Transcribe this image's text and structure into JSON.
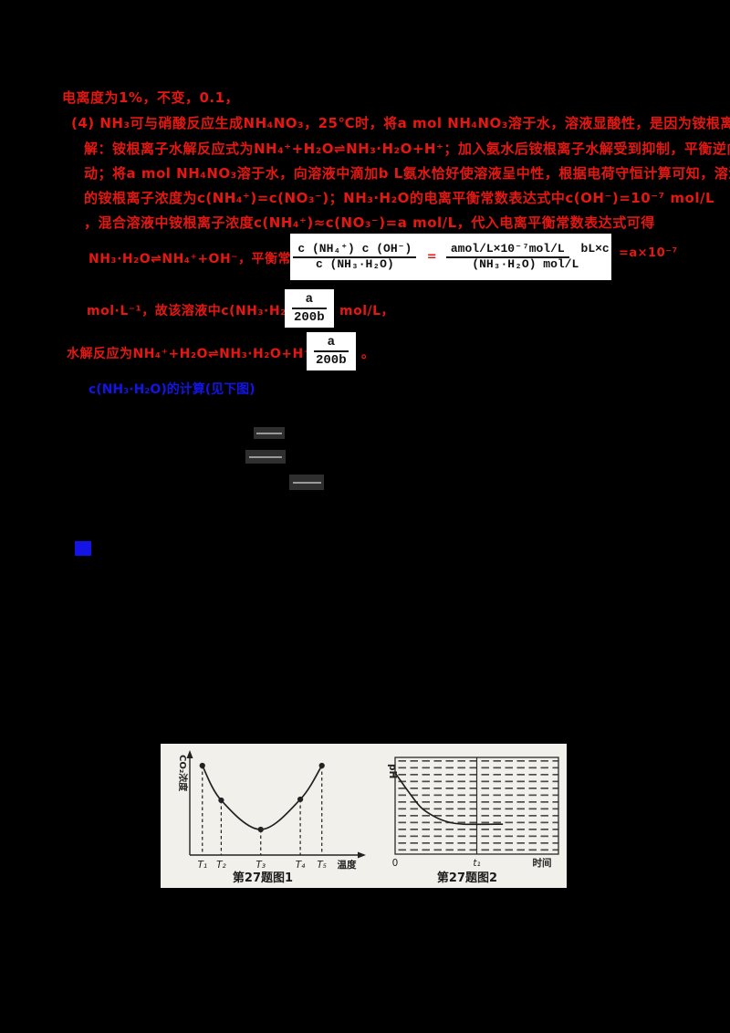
{
  "colors": {
    "red": "#e41712",
    "blue": "#1414e6",
    "paper": "#f2f0ea",
    "ink": "#1c1c1c",
    "background": "#000000"
  },
  "answer_text": {
    "line0": "电离度为1%，不变，0.1，",
    "line1": "(4) NH₃可与硝酸反应生成NH₄NO₃，25℃时，将a mol NH₄NO₃溶于水，溶液显酸性，是因为铵根离子水",
    "line2": "解：铵根离子水解反应式为NH₄⁺+H₂O⇌NH₃·H₂O+H⁺；加入氨水后铵根离子水解受到抑制，平衡逆向移",
    "line3": "动；将a mol NH₄NO₃溶于水，向溶液中滴加b L氨水恰好使溶液呈中性，根据电荷守恒计算可知，溶液中",
    "line4": "的铵根离子浓度为c(NH₄⁺)=c(NO₃⁻)；NH₃·H₂O的电离平衡常数表达式中c(OH⁻)=10⁻⁷ mol/L",
    "line5": "，混合溶液中铵根离子浓度c(NH₄⁺)≈c(NO₃⁻)=a mol/L，代入电离平衡常数表达式可得",
    "formula_prefix": "NH₃·H₂O⇌NH₄⁺+OH⁻，平衡常数K=",
    "formula_suffix": "=a×10⁻⁷",
    "line6_pre": "mol·L⁻¹，故该溶液中c(NH₃·H₂O)=",
    "line6_post": "mol/L，",
    "line7_pre": "水解反应为NH₄⁺+H₂O⇌NH₃·H₂O+H⁺，故为：",
    "line7_post": "。",
    "blue_note": "c(NH₃·H₂O)的计算(见下图)"
  },
  "formula_box": {
    "frac1_num": "c (NH₄⁺) c (OH⁻)",
    "frac1_den": "c (NH₃·H₂O)",
    "equals": "=",
    "frac2_num": "amol/L×10⁻⁷mol/L",
    "frac2_den": "bL×c (NH₃·H₂O) mol/L",
    "small_frac_num": "a",
    "small_frac_den": "200b"
  },
  "figures": {
    "caption1": "第27题图1",
    "caption2": "第27题图2"
  },
  "chart_data": [
    {
      "type": "line",
      "title": "第27题图1",
      "xlabel": "温度",
      "ylabel": "CO₂浓度",
      "x_ticks": [
        "T₁",
        "T₂",
        "T₃",
        "T₄",
        "T₅"
      ],
      "x_rel": [
        0.074,
        0.185,
        0.418,
        0.651,
        0.778
      ],
      "values_rel": [
        0.875,
        0.536,
        0.25,
        0.545,
        0.875
      ],
      "style": {
        "droplines": "dashed vertical from each point",
        "markers": "filled dots",
        "grid": "off",
        "axes": "arrowed"
      },
      "note": "CO₂浓度随温度先减小后增大，U形曲线，T₃处最低"
    },
    {
      "type": "line",
      "title": "第27题图2",
      "xlabel": "时间",
      "ylabel": "pH",
      "x_ticks": [
        "0",
        "t₁"
      ],
      "t1_rel": 0.5,
      "points_rel": [
        [
          0,
          0.84
        ],
        [
          0.08,
          0.65
        ],
        [
          0.16,
          0.48
        ],
        [
          0.25,
          0.38
        ],
        [
          0.33,
          0.33
        ],
        [
          0.42,
          0.31
        ],
        [
          0.66,
          0.31
        ]
      ],
      "style": {
        "grid": "dense dashed horizontal lines filling plot box",
        "t1_marker": "vertical line at t₁"
      },
      "note": "pH随时间下降，在t₁之前趋于平稳不再变化"
    }
  ]
}
